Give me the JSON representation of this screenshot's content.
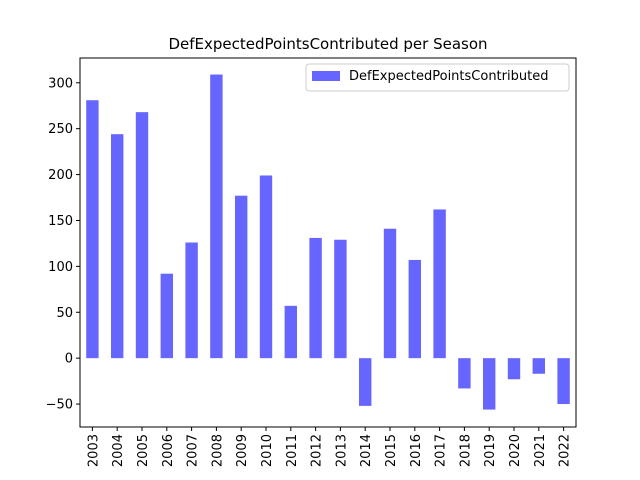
{
  "chart_data": {
    "type": "bar",
    "title": "DefExpectedPointsContributed per Season",
    "xlabel": "",
    "ylabel": "",
    "categories": [
      "2003",
      "2004",
      "2005",
      "2006",
      "2007",
      "2008",
      "2009",
      "2010",
      "2011",
      "2012",
      "2013",
      "2014",
      "2015",
      "2016",
      "2017",
      "2018",
      "2019",
      "2020",
      "2021",
      "2022"
    ],
    "series": [
      {
        "name": "DefExpectedPointsContributed",
        "color": "#6666ff",
        "values": [
          281,
          244,
          268,
          92,
          126,
          309,
          177,
          199,
          57,
          131,
          129,
          -52,
          141,
          107,
          162,
          -33,
          -56,
          -23,
          -17,
          -50
        ]
      }
    ],
    "ylim": [
      -75,
      327
    ],
    "yticks": [
      -50,
      0,
      50,
      100,
      150,
      200,
      250,
      300
    ],
    "ytick_labels": [
      "−50",
      "0",
      "50",
      "100",
      "150",
      "200",
      "250",
      "300"
    ],
    "grid": false,
    "legend_position": "top-right"
  }
}
